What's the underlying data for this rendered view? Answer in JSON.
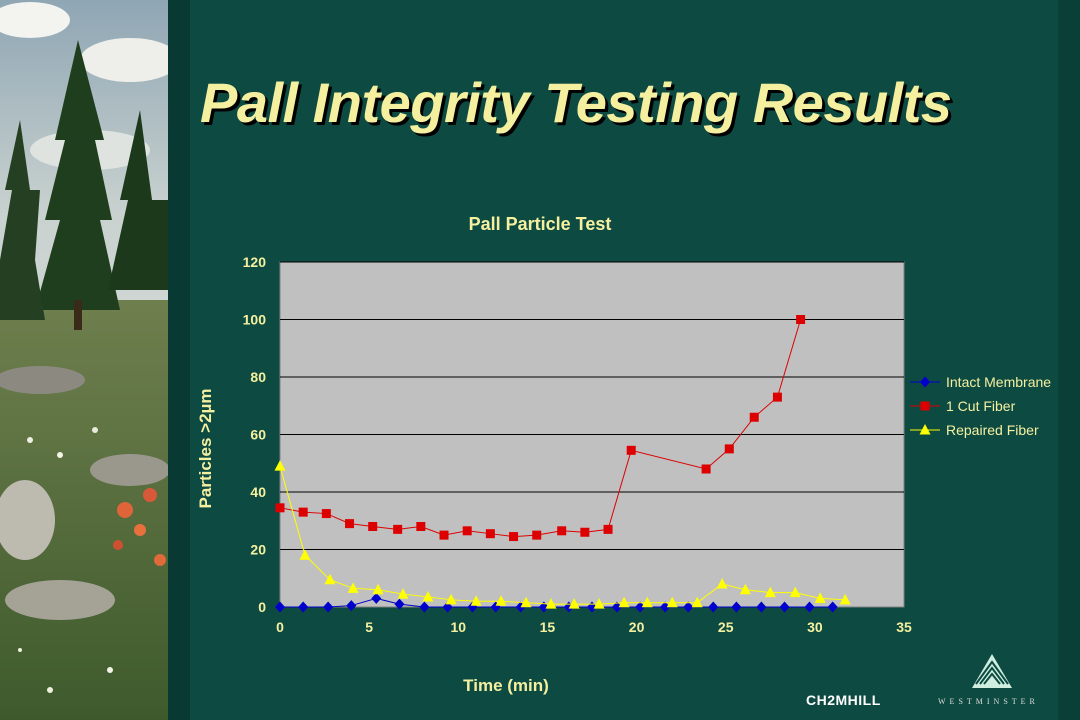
{
  "slide": {
    "title": "Pall Integrity Testing Results"
  },
  "branding": {
    "company": "CH2MHILL",
    "partner": "WESTMINSTER"
  },
  "colors": {
    "title": "#f5f0a0",
    "background": "#0d4a42",
    "chart_text": "#f5f0a0",
    "plot_bg": "#c0c0c0"
  },
  "chart_data": {
    "type": "scatter",
    "title": "Pall Particle Test",
    "xlabel": "Time (min)",
    "ylabel": "Particles >2µm",
    "xlim": [
      0,
      35
    ],
    "ylim": [
      0,
      120
    ],
    "xticks": [
      0,
      5,
      10,
      15,
      20,
      25,
      30,
      35
    ],
    "yticks": [
      0,
      20,
      40,
      60,
      80,
      100,
      120
    ],
    "grid": "horizontal",
    "legend": "right",
    "series": [
      {
        "name": "Intact Membrane",
        "color": "#0000cc",
        "marker": "diamond",
        "x": [
          0,
          1.3,
          2.7,
          4,
          5.4,
          6.7,
          8.1,
          9.4,
          10.8,
          12.1,
          13.5,
          14.8,
          16.2,
          17.5,
          18.9,
          20.2,
          21.6,
          22.9,
          24.3,
          25.6,
          27,
          28.3,
          29.7,
          31
        ],
        "y": [
          0,
          0,
          0,
          0.5,
          3,
          1,
          0,
          0,
          0,
          0,
          0,
          0,
          0,
          0,
          0,
          0,
          0,
          0,
          0,
          0,
          0,
          0,
          0,
          0
        ]
      },
      {
        "name": "1 Cut Fiber",
        "color": "#dd0000",
        "marker": "square",
        "x": [
          0,
          1.3,
          2.6,
          3.9,
          5.2,
          6.6,
          7.9,
          9.2,
          10.5,
          11.8,
          13.1,
          14.4,
          15.8,
          17.1,
          18.4,
          19.7,
          23.9,
          25.2,
          26.6,
          27.9,
          29.2
        ],
        "y": [
          34.5,
          33,
          32.5,
          29,
          28,
          27,
          28,
          25,
          26.5,
          25.5,
          24.5,
          25,
          26.5,
          26,
          27,
          54.5,
          48,
          55,
          66,
          73,
          100
        ]
      },
      {
        "name": "Repaired Fiber",
        "color": "#ffff00",
        "marker": "triangle",
        "x": [
          0,
          1.4,
          2.8,
          4.1,
          5.5,
          6.9,
          8.3,
          9.6,
          11,
          12.4,
          13.8,
          15.2,
          16.5,
          17.9,
          19.3,
          20.6,
          22,
          23.4,
          24.8,
          26.1,
          27.5,
          28.9,
          30.3,
          31.7
        ],
        "y": [
          49,
          18,
          9.5,
          6.5,
          6,
          4.5,
          3.5,
          2.5,
          2,
          2,
          1.5,
          1,
          1,
          1,
          1.5,
          1.5,
          1.5,
          1.5,
          8,
          6,
          5,
          5,
          3,
          2.5
        ]
      }
    ]
  }
}
